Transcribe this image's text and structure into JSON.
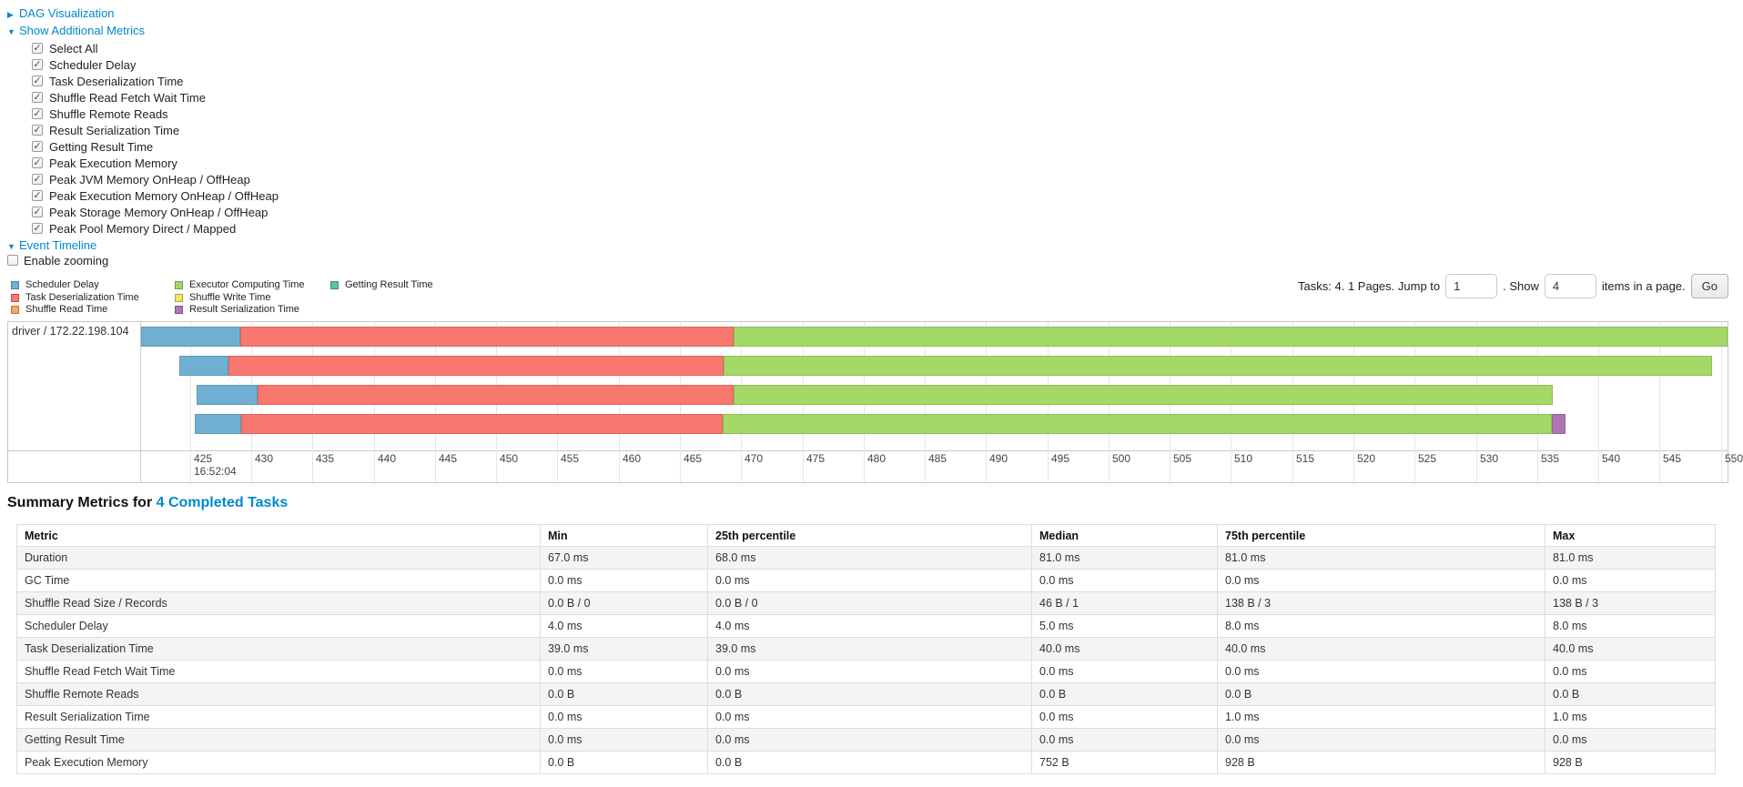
{
  "colors": {
    "scheduler_delay": "#6FB0D2",
    "task_deserialization": "#F8776F",
    "shuffle_read": "#F9A65A",
    "executor_computing": "#A4D867",
    "shuffle_write": "#F3E55E",
    "result_serialization": "#B175B1",
    "getting_result": "#59C2A8",
    "link": "#0088cc"
  },
  "controls": {
    "dag": {
      "label": "DAG Visualization",
      "arrow": "▶",
      "collapsed": true
    },
    "metrics": {
      "label": "Show Additional Metrics",
      "arrow": "▼",
      "items": [
        {
          "label": "Select All",
          "checked": true
        },
        {
          "label": "Scheduler Delay",
          "checked": true
        },
        {
          "label": "Task Deserialization Time",
          "checked": true
        },
        {
          "label": "Shuffle Read Fetch Wait Time",
          "checked": true
        },
        {
          "label": "Shuffle Remote Reads",
          "checked": true
        },
        {
          "label": "Result Serialization Time",
          "checked": true
        },
        {
          "label": "Getting Result Time",
          "checked": true
        },
        {
          "label": "Peak Execution Memory",
          "checked": true
        },
        {
          "label": "Peak JVM Memory OnHeap / OffHeap",
          "checked": true
        },
        {
          "label": "Peak Execution Memory OnHeap / OffHeap",
          "checked": true
        },
        {
          "label": "Peak Storage Memory OnHeap / OffHeap",
          "checked": true
        },
        {
          "label": "Peak Pool Memory Direct / Mapped",
          "checked": true
        }
      ]
    },
    "event_timeline": {
      "label": "Event Timeline",
      "arrow": "▼"
    },
    "enable_zooming": {
      "label": "Enable zooming",
      "checked": false
    }
  },
  "legend": {
    "items": [
      {
        "label": "Scheduler Delay",
        "color_key": "scheduler_delay"
      },
      {
        "label": "Task Deserialization Time",
        "color_key": "task_deserialization"
      },
      {
        "label": "Shuffle Read Time",
        "color_key": "shuffle_read"
      },
      {
        "label": "Executor Computing Time",
        "color_key": "executor_computing"
      },
      {
        "label": "Shuffle Write Time",
        "color_key": "shuffle_write"
      },
      {
        "label": "Result Serialization Time",
        "color_key": "result_serialization"
      },
      {
        "label": "Getting Result Time",
        "color_key": "getting_result"
      }
    ]
  },
  "pagination": {
    "prefix": "Tasks: 4. 1 Pages. Jump to",
    "jump_value": "1",
    "show_label": ". Show",
    "show_value": "4",
    "items_label": "items in a page.",
    "go_label": "Go"
  },
  "chart_data": {
    "type": "timeline",
    "row_label": "driver / 172.22.198.104",
    "axis_start_label": "16:52:04",
    "axis_ticks": [
      425,
      430,
      435,
      440,
      445,
      450,
      455,
      460,
      465,
      470,
      475,
      480,
      485,
      490,
      495,
      500,
      505,
      510,
      515,
      520,
      525,
      530,
      535,
      540,
      545,
      550
    ],
    "value_range": [
      421.0,
      550.55
    ],
    "tasks": [
      {
        "segments": [
          {
            "type": "scheduler_delay",
            "start": 421.0,
            "end": 429.1
          },
          {
            "type": "task_deserialization",
            "start": 429.1,
            "end": 469.4
          },
          {
            "type": "executor_computing",
            "start": 469.4,
            "end": 550.6
          }
        ]
      },
      {
        "segments": [
          {
            "type": "scheduler_delay",
            "start": 424.1,
            "end": 428.1
          },
          {
            "type": "task_deserialization",
            "start": 428.1,
            "end": 468.6
          },
          {
            "type": "executor_computing",
            "start": 468.6,
            "end": 549.3
          }
        ]
      },
      {
        "segments": [
          {
            "type": "scheduler_delay",
            "start": 425.5,
            "end": 430.5
          },
          {
            "type": "task_deserialization",
            "start": 430.5,
            "end": 469.4
          },
          {
            "type": "executor_computing",
            "start": 469.4,
            "end": 536.3
          }
        ]
      },
      {
        "segments": [
          {
            "type": "scheduler_delay",
            "start": 425.4,
            "end": 429.2
          },
          {
            "type": "task_deserialization",
            "start": 429.2,
            "end": 468.5
          },
          {
            "type": "executor_computing",
            "start": 468.5,
            "end": 536.2
          },
          {
            "type": "result_serialization",
            "start": 536.2,
            "end": 537.3
          }
        ]
      }
    ]
  },
  "summary": {
    "title_prefix": "Summary Metrics for ",
    "title_link": "4 Completed Tasks",
    "table": {
      "headers": [
        "Metric",
        "Min",
        "25th percentile",
        "Median",
        "75th percentile",
        "Max"
      ],
      "rows": [
        [
          "Duration",
          "67.0 ms",
          "68.0 ms",
          "81.0 ms",
          "81.0 ms",
          "81.0 ms"
        ],
        [
          "GC Time",
          "0.0 ms",
          "0.0 ms",
          "0.0 ms",
          "0.0 ms",
          "0.0 ms"
        ],
        [
          "Shuffle Read Size / Records",
          "0.0 B / 0",
          "0.0 B / 0",
          "46 B / 1",
          "138 B / 3",
          "138 B / 3"
        ],
        [
          "Scheduler Delay",
          "4.0 ms",
          "4.0 ms",
          "5.0 ms",
          "8.0 ms",
          "8.0 ms"
        ],
        [
          "Task Deserialization Time",
          "39.0 ms",
          "39.0 ms",
          "40.0 ms",
          "40.0 ms",
          "40.0 ms"
        ],
        [
          "Shuffle Read Fetch Wait Time",
          "0.0 ms",
          "0.0 ms",
          "0.0 ms",
          "0.0 ms",
          "0.0 ms"
        ],
        [
          "Shuffle Remote Reads",
          "0.0 B",
          "0.0 B",
          "0.0 B",
          "0.0 B",
          "0.0 B"
        ],
        [
          "Result Serialization Time",
          "0.0 ms",
          "0.0 ms",
          "0.0 ms",
          "1.0 ms",
          "1.0 ms"
        ],
        [
          "Getting Result Time",
          "0.0 ms",
          "0.0 ms",
          "0.0 ms",
          "0.0 ms",
          "0.0 ms"
        ],
        [
          "Peak Execution Memory",
          "0.0 B",
          "0.0 B",
          "752 B",
          "928 B",
          "928 B"
        ]
      ]
    }
  }
}
